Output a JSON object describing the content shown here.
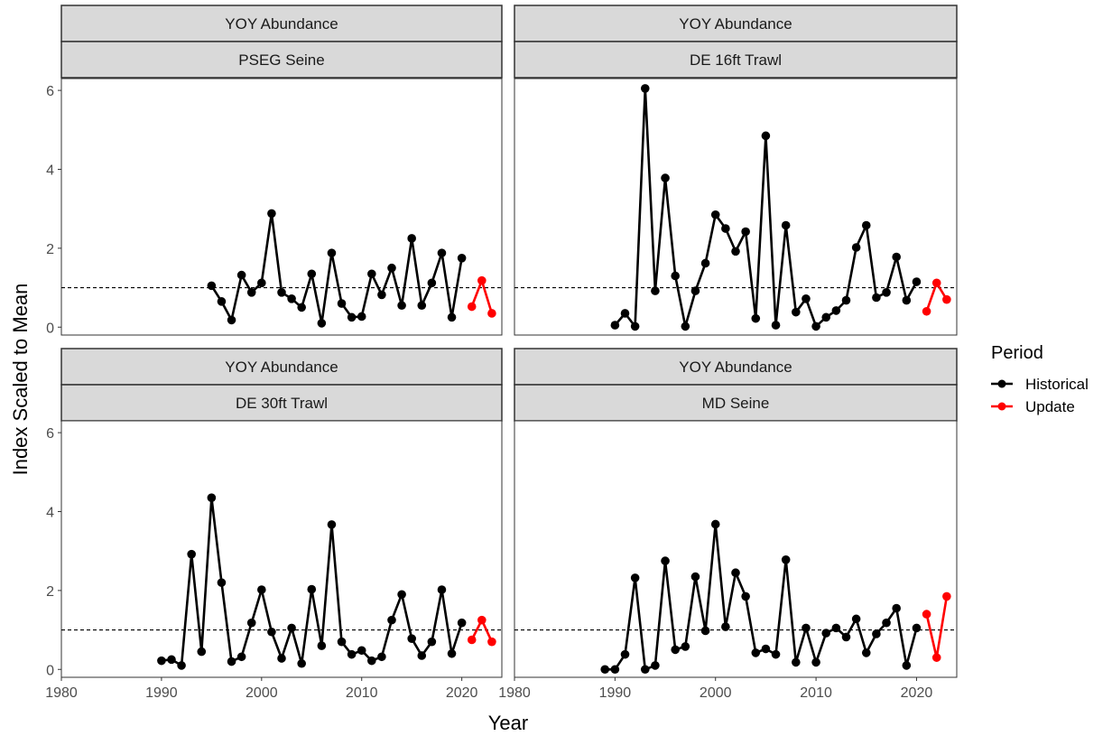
{
  "chart_data": {
    "type": "line",
    "xlabel": "Year",
    "ylabel": "Index Scaled to Mean",
    "xlim": [
      1980,
      2024
    ],
    "ylim": [
      -0.2,
      6.3
    ],
    "x_ticks": [
      "1980",
      "1990",
      "2000",
      "2010",
      "2020"
    ],
    "y_ticks": [
      "0",
      "2",
      "4",
      "6"
    ],
    "reference_line": 1,
    "legend": {
      "title": "Period",
      "position": "right",
      "entries": [
        {
          "label": "Historical",
          "color": "#000000"
        },
        {
          "label": "Update",
          "color": "#ff0000"
        }
      ]
    },
    "panels": [
      {
        "strip_top": "YOY Abundance",
        "strip_bottom": "PSEG Seine",
        "series": [
          {
            "name": "Historical",
            "color": "#000000",
            "x": [
              1995,
              1996,
              1997,
              1998,
              1999,
              2000,
              2001,
              2002,
              2003,
              2004,
              2005,
              2006,
              2007,
              2008,
              2009,
              2010,
              2011,
              2012,
              2013,
              2014,
              2015,
              2016,
              2017,
              2018,
              2019,
              2020
            ],
            "y": [
              1.05,
              0.65,
              0.18,
              1.32,
              0.88,
              1.12,
              2.88,
              0.88,
              0.72,
              0.5,
              1.35,
              0.1,
              1.88,
              0.6,
              0.25,
              0.27,
              1.35,
              0.82,
              1.5,
              0.55,
              2.25,
              0.55,
              1.12,
              1.88,
              0.25,
              1.75
            ]
          },
          {
            "name": "Update",
            "color": "#ff0000",
            "x": [
              2021,
              2022,
              2023
            ],
            "y": [
              0.52,
              1.18,
              0.35
            ]
          }
        ]
      },
      {
        "strip_top": "YOY Abundance",
        "strip_bottom": "DE 16ft Trawl",
        "series": [
          {
            "name": "Historical",
            "color": "#000000",
            "x": [
              1990,
              1991,
              1992,
              1993,
              1994,
              1995,
              1996,
              1997,
              1998,
              1999,
              2000,
              2001,
              2002,
              2003,
              2004,
              2005,
              2006,
              2007,
              2008,
              2009,
              2010,
              2011,
              2012,
              2013,
              2014,
              2015,
              2016,
              2017,
              2018,
              2019,
              2020
            ],
            "y": [
              0.05,
              0.35,
              0.02,
              6.05,
              0.92,
              3.78,
              1.3,
              0.02,
              0.92,
              1.62,
              2.85,
              2.5,
              1.92,
              2.42,
              0.22,
              4.85,
              0.05,
              2.58,
              0.38,
              0.72,
              0.02,
              0.25,
              0.42,
              0.68,
              2.02,
              2.58,
              0.75,
              0.88,
              1.78,
              0.68,
              1.15
            ]
          },
          {
            "name": "Update",
            "color": "#ff0000",
            "x": [
              2021,
              2022,
              2023
            ],
            "y": [
              0.4,
              1.12,
              0.7
            ]
          }
        ]
      },
      {
        "strip_top": "YOY Abundance",
        "strip_bottom": "DE 30ft Trawl",
        "series": [
          {
            "name": "Historical",
            "color": "#000000",
            "x": [
              1990,
              1991,
              1992,
              1993,
              1994,
              1995,
              1996,
              1997,
              1998,
              1999,
              2000,
              2001,
              2002,
              2003,
              2004,
              2005,
              2006,
              2007,
              2008,
              2009,
              2010,
              2011,
              2012,
              2013,
              2014,
              2015,
              2016,
              2017,
              2018,
              2019,
              2020
            ],
            "y": [
              0.22,
              0.25,
              0.1,
              2.92,
              0.45,
              4.35,
              2.2,
              0.2,
              0.32,
              1.18,
              2.02,
              0.95,
              0.28,
              1.05,
              0.15,
              2.03,
              0.6,
              3.67,
              0.7,
              0.38,
              0.48,
              0.22,
              0.32,
              1.25,
              1.9,
              0.78,
              0.35,
              0.7,
              2.02,
              0.4,
              1.18
            ]
          },
          {
            "name": "Update",
            "color": "#ff0000",
            "x": [
              2021,
              2022,
              2023
            ],
            "y": [
              0.75,
              1.25,
              0.7
            ]
          }
        ]
      },
      {
        "strip_top": "YOY Abundance",
        "strip_bottom": "MD Seine",
        "series": [
          {
            "name": "Historical",
            "color": "#000000",
            "x": [
              1989,
              1990,
              1991,
              1992,
              1993,
              1994,
              1995,
              1996,
              1997,
              1998,
              1999,
              2000,
              2001,
              2002,
              2003,
              2004,
              2005,
              2006,
              2007,
              2008,
              2009,
              2010,
              2011,
              2012,
              2013,
              2014,
              2015,
              2016,
              2017,
              2018,
              2019,
              2020
            ],
            "y": [
              0.0,
              0.0,
              0.38,
              2.32,
              0.0,
              0.1,
              2.75,
              0.5,
              0.58,
              2.35,
              0.98,
              3.68,
              1.08,
              2.45,
              1.85,
              0.42,
              0.52,
              0.38,
              2.78,
              0.18,
              1.05,
              0.18,
              0.92,
              1.05,
              0.82,
              1.28,
              0.42,
              0.9,
              1.18,
              1.55,
              0.1,
              1.05
            ]
          },
          {
            "name": "Update",
            "color": "#ff0000",
            "x": [
              2021,
              2022,
              2023
            ],
            "y": [
              1.4,
              0.3,
              1.85
            ]
          }
        ]
      }
    ]
  }
}
